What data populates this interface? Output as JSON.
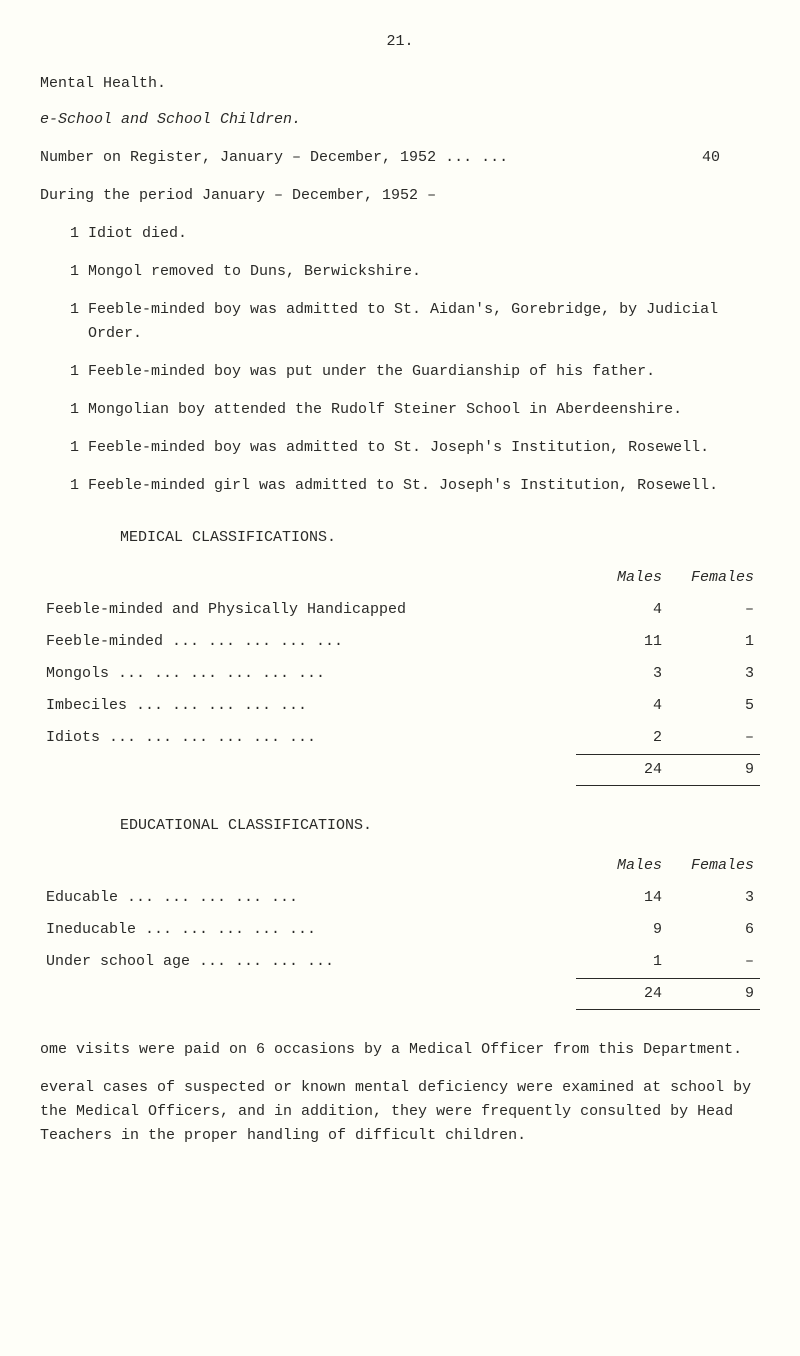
{
  "page_number": "21.",
  "section_title": "Mental Health.",
  "subheading": "e-School and School Children.",
  "register_line_prefix": "Number on Register, January – December, 1952 ...   ...",
  "register_value": "40",
  "during_line": "During the period January – December, 1952 –",
  "events": [
    "1 Idiot died.",
    "1 Mongol removed to Duns, Berwickshire.",
    "1 Feeble-minded boy was admitted to St. Aidan's, Gorebridge, by Judicial Order.",
    "1 Feeble-minded boy was put under the Guardianship of his father.",
    "1 Mongolian boy attended the Rudolf Steiner School in Aberdeenshire.",
    "1 Feeble-minded boy was admitted to St. Joseph's Institution, Rosewell.",
    "1 Feeble-minded girl was admitted to St. Joseph's Institution, Rosewell."
  ],
  "medical_title": "MEDICAL CLASSIFICATIONS.",
  "col_males": "Males",
  "col_females": "Females",
  "medical_rows": [
    {
      "label": "Feeble-minded and Physically Handicapped",
      "males": "4",
      "females": "–"
    },
    {
      "label": "Feeble-minded ...   ...   ...   ...   ...",
      "males": "11",
      "females": "1"
    },
    {
      "label": "Mongols ...   ...   ...   ...   ...   ...",
      "males": "3",
      "females": "3"
    },
    {
      "label": "Imbeciles     ...   ...   ...   ...   ...",
      "males": "4",
      "females": "5"
    },
    {
      "label": "Idiots ...   ...   ...   ...   ...   ...",
      "males": "2",
      "females": "–"
    }
  ],
  "medical_total": {
    "males": "24",
    "females": "9"
  },
  "edu_title": "EDUCATIONAL CLASSIFICATIONS.",
  "edu_rows": [
    {
      "label": "Educable      ...   ...   ...   ...   ...",
      "males": "14",
      "females": "3"
    },
    {
      "label": "Ineducable    ...   ...   ...   ...   ...",
      "males": "9",
      "females": "6"
    },
    {
      "label": "Under school age   ...   ...   ...   ...",
      "males": "1",
      "females": "–"
    }
  ],
  "edu_total": {
    "males": "24",
    "females": "9"
  },
  "footnote1": "ome visits were paid on 6 occasions by a Medical Officer from this Department.",
  "footnote2": "everal cases of suspected or known mental deficiency were examined at school by the Medical Officers, and in addition, they were frequently consulted by Head Teachers in the proper handling of difficult children."
}
